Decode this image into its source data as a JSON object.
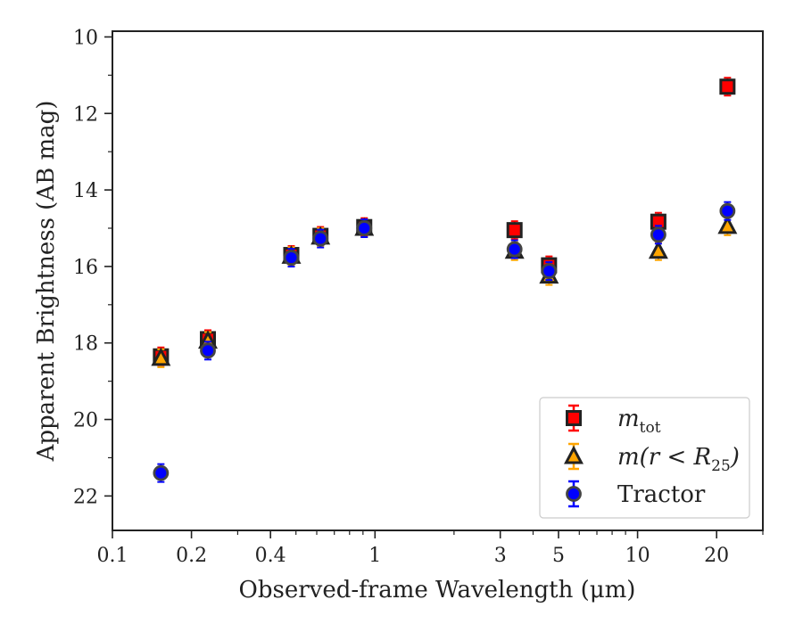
{
  "chart_data": {
    "type": "scatter",
    "title": "",
    "xlabel": "Observed-frame Wavelength (μm)",
    "ylabel": "Apparent Brightness (AB mag)",
    "xscale": "log",
    "xlim": [
      0.1,
      30
    ],
    "ylim": [
      22.9,
      9.85
    ],
    "y_inverted": true,
    "grid": false,
    "legend_position": "bottom-right",
    "x_ticks": [
      {
        "value": 0.1,
        "label": "0.1"
      },
      {
        "value": 0.2,
        "label": "0.2"
      },
      {
        "value": 0.4,
        "label": "0.4"
      },
      {
        "value": 1,
        "label": "1"
      },
      {
        "value": 3,
        "label": "3"
      },
      {
        "value": 5,
        "label": "5"
      },
      {
        "value": 10,
        "label": "10"
      },
      {
        "value": 20,
        "label": "20"
      }
    ],
    "y_ticks": [
      {
        "value": 10,
        "label": "10"
      },
      {
        "value": 12,
        "label": "12"
      },
      {
        "value": 14,
        "label": "14"
      },
      {
        "value": 16,
        "label": "16"
      },
      {
        "value": 18,
        "label": "18"
      },
      {
        "value": 20,
        "label": "20"
      },
      {
        "value": 22,
        "label": "22"
      }
    ],
    "series": [
      {
        "name": "m_tot",
        "legend_main": "m",
        "legend_sub": "tot",
        "marker": "square",
        "color": "#ff0000",
        "edge_color": "#222222",
        "points": [
          {
            "x": 0.153,
            "y": 18.35
          },
          {
            "x": 0.231,
            "y": 17.9
          },
          {
            "x": 0.48,
            "y": 15.7
          },
          {
            "x": 0.62,
            "y": 15.2
          },
          {
            "x": 0.91,
            "y": 14.97
          },
          {
            "x": 3.4,
            "y": 15.05
          },
          {
            "x": 4.6,
            "y": 15.97
          },
          {
            "x": 12.0,
            "y": 14.83
          },
          {
            "x": 22.0,
            "y": 11.3
          }
        ]
      },
      {
        "name": "m(r < R25)",
        "legend_main": "m(r < R",
        "legend_sub": "25",
        "legend_close": ")",
        "marker": "triangle",
        "color": "#ffa500",
        "edge_color": "#222222",
        "points": [
          {
            "x": 0.153,
            "y": 18.4
          },
          {
            "x": 0.231,
            "y": 17.95
          },
          {
            "x": 0.48,
            "y": 15.73
          },
          {
            "x": 0.62,
            "y": 15.23
          },
          {
            "x": 0.91,
            "y": 15.0
          },
          {
            "x": 3.4,
            "y": 15.6
          },
          {
            "x": 4.6,
            "y": 16.25
          },
          {
            "x": 12.0,
            "y": 15.6
          },
          {
            "x": 22.0,
            "y": 14.95
          }
        ]
      },
      {
        "name": "Tractor",
        "legend_main": "Tractor",
        "marker": "circle",
        "color": "#0000ff",
        "edge_color": "#444444",
        "points": [
          {
            "x": 0.153,
            "y": 21.4
          },
          {
            "x": 0.231,
            "y": 18.2
          },
          {
            "x": 0.48,
            "y": 15.77
          },
          {
            "x": 0.62,
            "y": 15.27
          },
          {
            "x": 0.91,
            "y": 15.0
          },
          {
            "x": 3.4,
            "y": 15.55
          },
          {
            "x": 4.6,
            "y": 16.12
          },
          {
            "x": 12.0,
            "y": 15.17
          },
          {
            "x": 22.0,
            "y": 14.55
          }
        ]
      }
    ]
  }
}
